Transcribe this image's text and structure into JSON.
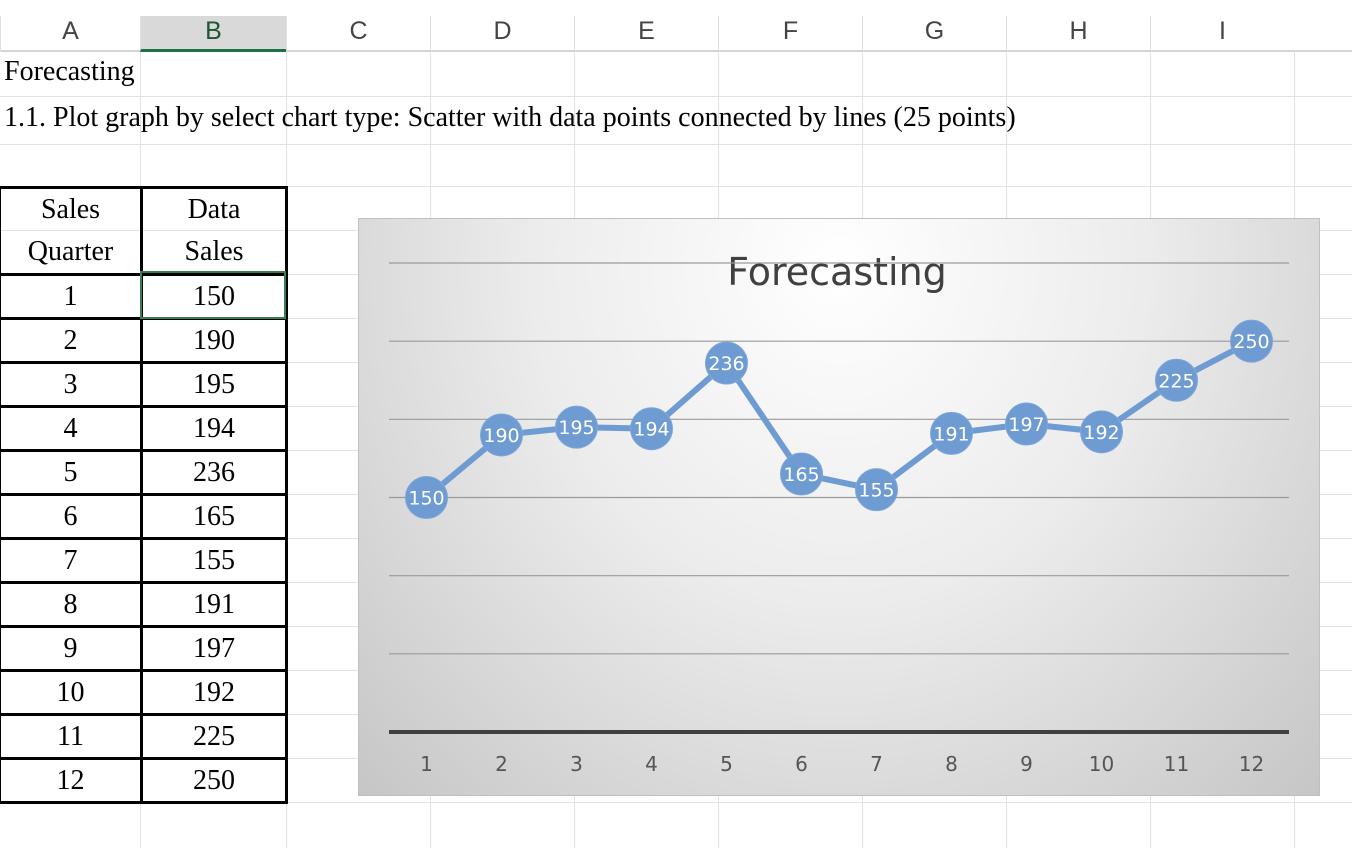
{
  "sheet": {
    "columns": [
      "A",
      "B",
      "C",
      "D",
      "E",
      "F",
      "G",
      "H",
      "I"
    ],
    "selected_column": "B",
    "title_cell": "Forecasting",
    "instruction_cell": "1.1. Plot graph by select chart type: Scatter with data points connected by lines (25 points)"
  },
  "table": {
    "header_col1_line1": "Sales",
    "header_col1_line2": "Quarter",
    "header_col2_line1": "Data",
    "header_col2_line2": "Sales",
    "rows": [
      {
        "quarter": "1",
        "sales": "150"
      },
      {
        "quarter": "2",
        "sales": "190"
      },
      {
        "quarter": "3",
        "sales": "195"
      },
      {
        "quarter": "4",
        "sales": "194"
      },
      {
        "quarter": "5",
        "sales": "236"
      },
      {
        "quarter": "6",
        "sales": "165"
      },
      {
        "quarter": "7",
        "sales": "155"
      },
      {
        "quarter": "8",
        "sales": "191"
      },
      {
        "quarter": "9",
        "sales": "197"
      },
      {
        "quarter": "10",
        "sales": "192"
      },
      {
        "quarter": "11",
        "sales": "225"
      },
      {
        "quarter": "12",
        "sales": "250"
      }
    ]
  },
  "chart_data": {
    "type": "line",
    "title": "Forecasting",
    "categories": [
      "1",
      "2",
      "3",
      "4",
      "5",
      "6",
      "7",
      "8",
      "9",
      "10",
      "11",
      "12"
    ],
    "series": [
      {
        "values": [
          150,
          190,
          195,
          194,
          236,
          165,
          155,
          191,
          197,
          192,
          225,
          250
        ]
      }
    ],
    "ylim": [
      0,
      300
    ],
    "grid": true,
    "data_labels": true,
    "legend": "none",
    "colors": {
      "series": "#6f9bd3",
      "label_text": "#ffffff",
      "title": "#404040",
      "axis": "#404040"
    }
  }
}
